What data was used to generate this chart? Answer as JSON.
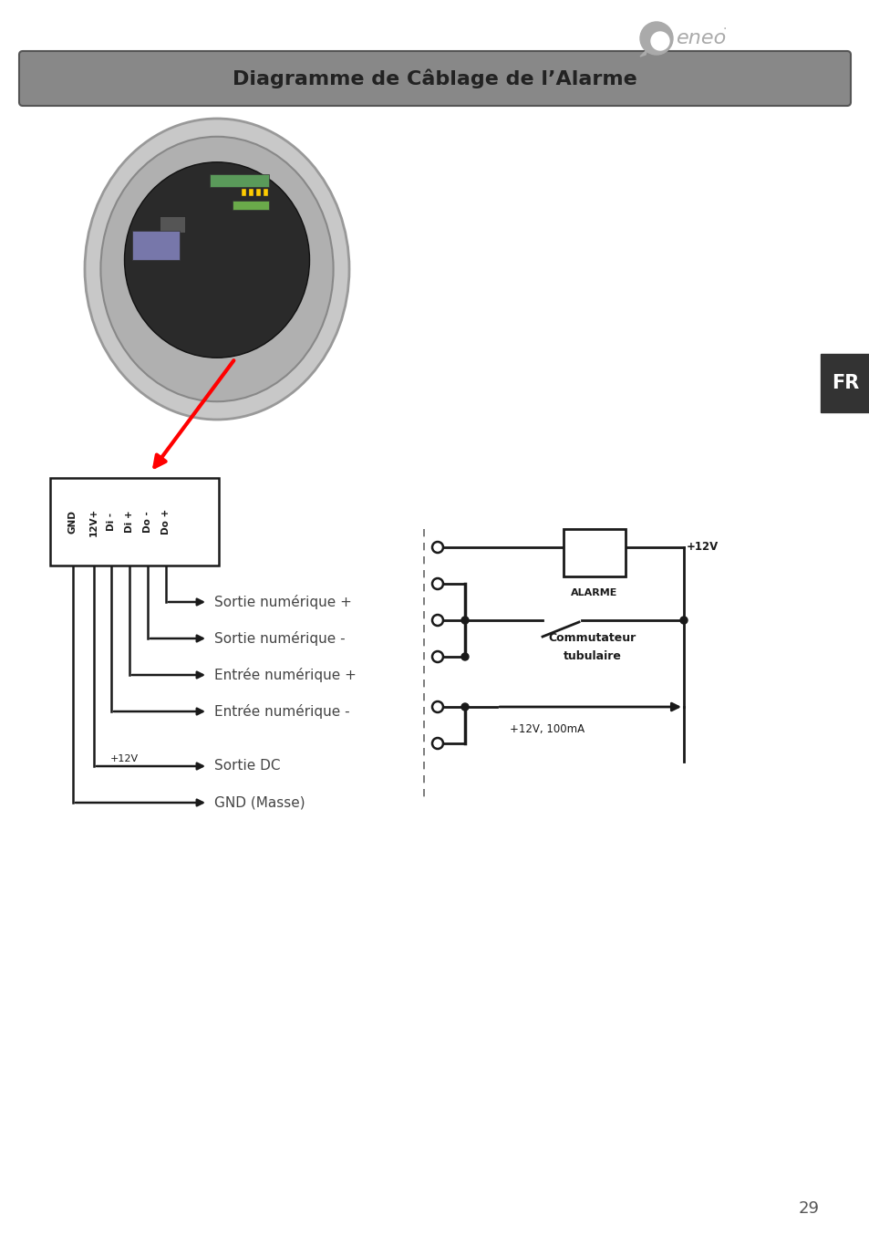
{
  "title": "Diagramme de Câblage de l’Alarme",
  "title_bg": "#888888",
  "title_border": "#555555",
  "title_text_color": "#222222",
  "fr_label": "FR",
  "fr_bg": "#333333",
  "fr_text_color": "#ffffff",
  "page_number": "29",
  "connector_labels": [
    "GND",
    "12V+",
    "Di -",
    "Di +",
    "Do -",
    "Do +"
  ],
  "wire_labels": [
    "Sortie numérique +",
    "Sortie numérique -",
    "Entrée numérique +",
    "Entrée numérique -",
    "Sortie DC",
    "GND (Masse)"
  ],
  "v12_label": "+12V",
  "alarm_label": "ALARME",
  "switch_label_1": "Commutateur",
  "switch_label_2": "tubulaire",
  "power_label": "+12V, 100mA",
  "v12_wire_label": "+12V",
  "bg_color": "#ffffff",
  "line_color": "#1a1a1a",
  "dashed_line_color": "#666666",
  "text_color": "#444444",
  "logo_color": "#aaaaaa"
}
